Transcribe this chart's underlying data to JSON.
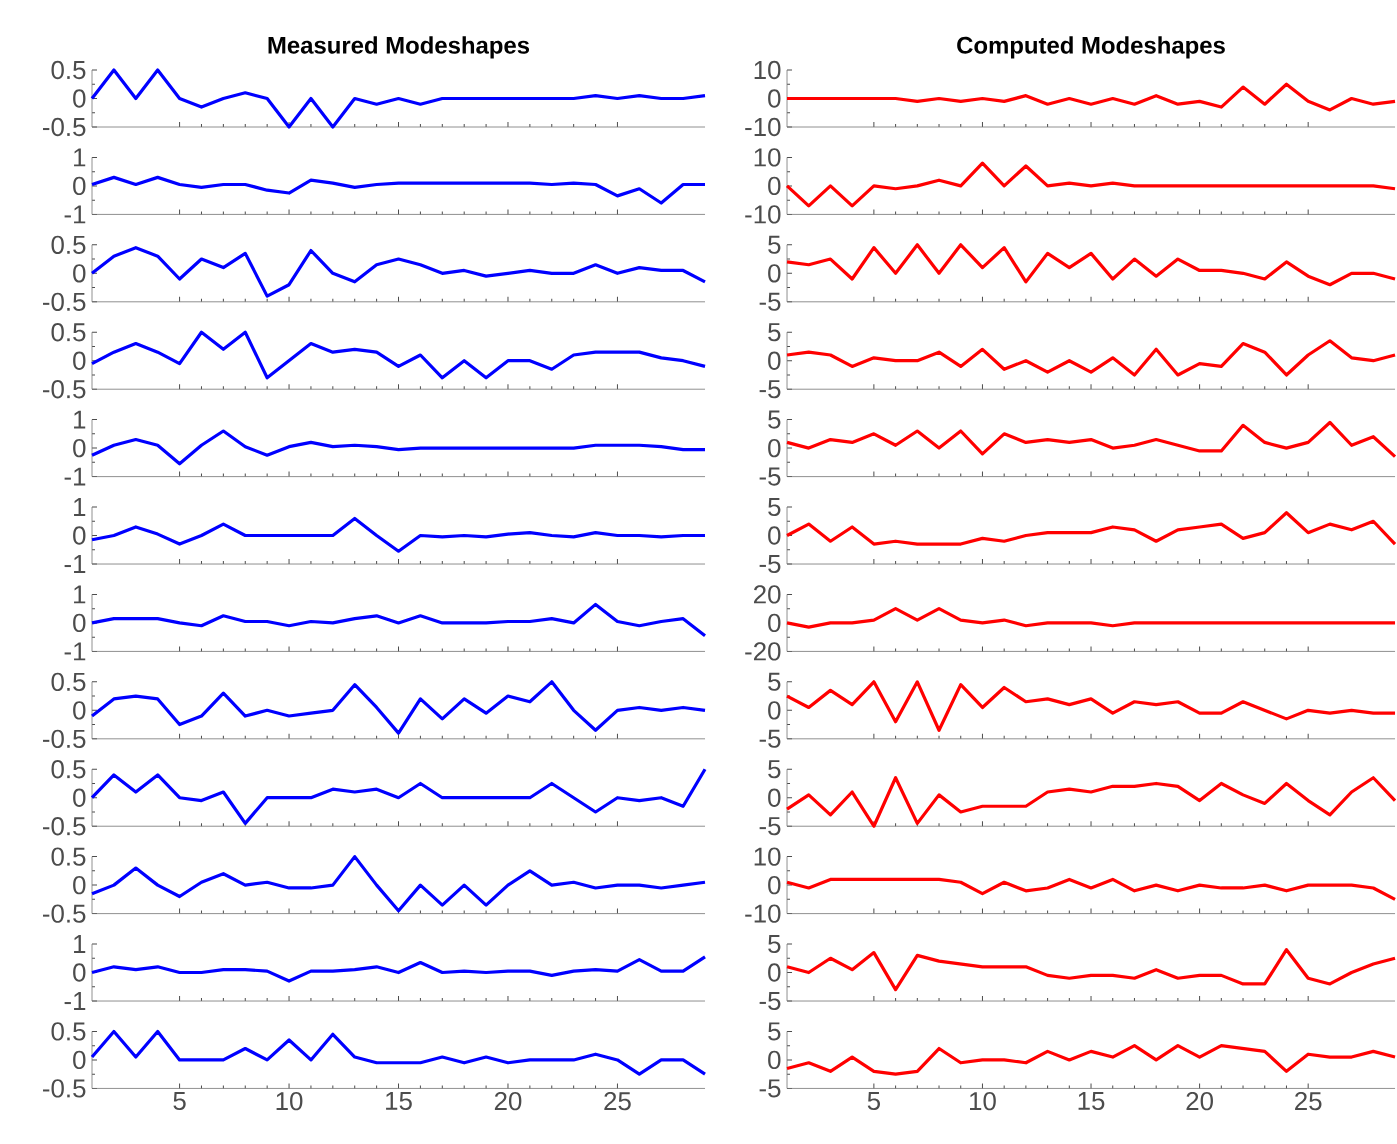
{
  "chart_data": [
    {
      "type": "line",
      "title": "Measured Modeshapes",
      "x": [
        1,
        2,
        3,
        4,
        5,
        6,
        7,
        8,
        9,
        10,
        11,
        12,
        13,
        14,
        15,
        16,
        17,
        18,
        19,
        20,
        21,
        22,
        23,
        24,
        25,
        26,
        27,
        28,
        29
      ],
      "values": [
        0,
        0.5,
        0,
        0.5,
        0,
        -0.15,
        0,
        0.1,
        0,
        -0.5,
        0,
        -0.5,
        0,
        -0.1,
        0,
        -0.1,
        0,
        0,
        0,
        0,
        0,
        0,
        0,
        0.05,
        0,
        0.05,
        0,
        0,
        0.05
      ],
      "color": "#0000ff",
      "xlim": [
        1,
        29
      ],
      "xticks": [
        5,
        10,
        15,
        20,
        25
      ],
      "ylim": [
        -0.5,
        0.5
      ],
      "yticks": [
        -0.5,
        0,
        0.5
      ],
      "tick_labels": "y"
    },
    {
      "type": "line",
      "title": "Computed Modeshapes",
      "x": [
        1,
        2,
        3,
        4,
        5,
        6,
        7,
        8,
        9,
        10,
        11,
        12,
        13,
        14,
        15,
        16,
        17,
        18,
        19,
        20,
        21,
        22,
        23,
        24,
        25,
        26,
        27,
        28,
        29
      ],
      "values": [
        0,
        0,
        0,
        0,
        0,
        0,
        -1,
        0,
        -1,
        0,
        -1,
        1,
        -2,
        0,
        -2,
        0,
        -2,
        1,
        -2,
        -1,
        -3,
        4,
        -2,
        5,
        -1,
        -4,
        0,
        -2,
        -1
      ],
      "color": "#ff0000",
      "xlim": [
        1,
        29
      ],
      "xticks": [
        5,
        10,
        15,
        20,
        25
      ],
      "ylim": [
        -10,
        10
      ],
      "yticks": [
        -10,
        0,
        10
      ],
      "tick_labels": "y"
    },
    {
      "type": "line",
      "x": [
        1,
        2,
        3,
        4,
        5,
        6,
        7,
        8,
        9,
        10,
        11,
        12,
        13,
        14,
        15,
        16,
        17,
        18,
        19,
        20,
        21,
        22,
        23,
        24,
        25,
        26,
        27,
        28,
        29
      ],
      "values": [
        0.05,
        0.3,
        0.05,
        0.3,
        0.05,
        -0.05,
        0.05,
        0.05,
        -0.15,
        -0.25,
        0.2,
        0.1,
        -0.05,
        0.05,
        0.1,
        0.1,
        0.1,
        0.1,
        0.1,
        0.1,
        0.1,
        0.05,
        0.1,
        0.05,
        -0.35,
        -0.1,
        -0.6,
        0.05,
        0.05
      ],
      "color": "#0000ff",
      "xlim": [
        1,
        29
      ],
      "xticks": [
        5,
        10,
        15,
        20,
        25
      ],
      "ylim": [
        -1,
        1
      ],
      "yticks": [
        -1,
        0,
        1
      ],
      "tick_labels": "y"
    },
    {
      "type": "line",
      "x": [
        1,
        2,
        3,
        4,
        5,
        6,
        7,
        8,
        9,
        10,
        11,
        12,
        13,
        14,
        15,
        16,
        17,
        18,
        19,
        20,
        21,
        22,
        23,
        24,
        25,
        26,
        27,
        28,
        29
      ],
      "values": [
        0,
        -7,
        0,
        -7,
        0,
        -1,
        0,
        2,
        0,
        8,
        0,
        7,
        0,
        1,
        0,
        1,
        0,
        0,
        0,
        0,
        0,
        0,
        0,
        0,
        0,
        0,
        0,
        0,
        -1
      ],
      "color": "#ff0000",
      "xlim": [
        1,
        29
      ],
      "xticks": [
        5,
        10,
        15,
        20,
        25
      ],
      "ylim": [
        -10,
        10
      ],
      "yticks": [
        -10,
        0,
        10
      ],
      "tick_labels": "y"
    },
    {
      "type": "line",
      "x": [
        1,
        2,
        3,
        4,
        5,
        6,
        7,
        8,
        9,
        10,
        11,
        12,
        13,
        14,
        15,
        16,
        17,
        18,
        19,
        20,
        21,
        22,
        23,
        24,
        25,
        26,
        27,
        28,
        29
      ],
      "values": [
        0,
        0.3,
        0.45,
        0.3,
        -0.1,
        0.25,
        0.1,
        0.35,
        -0.4,
        -0.2,
        0.4,
        0,
        -0.15,
        0.15,
        0.25,
        0.15,
        0,
        0.05,
        -0.05,
        0,
        0.05,
        0,
        0,
        0.15,
        0,
        0.1,
        0.05,
        0.05,
        -0.15
      ],
      "color": "#0000ff",
      "xlim": [
        1,
        29
      ],
      "xticks": [
        5,
        10,
        15,
        20,
        25
      ],
      "ylim": [
        -0.5,
        0.5
      ],
      "yticks": [
        -0.5,
        0,
        0.5
      ],
      "tick_labels": "y"
    },
    {
      "type": "line",
      "x": [
        1,
        2,
        3,
        4,
        5,
        6,
        7,
        8,
        9,
        10,
        11,
        12,
        13,
        14,
        15,
        16,
        17,
        18,
        19,
        20,
        21,
        22,
        23,
        24,
        25,
        26,
        27,
        28,
        29
      ],
      "values": [
        2,
        1.5,
        2.5,
        -1,
        4.5,
        0,
        5,
        0,
        5,
        1,
        4.5,
        -1.5,
        3.5,
        1,
        3.5,
        -1,
        2.5,
        -0.5,
        2.5,
        0.5,
        0.5,
        0,
        -1,
        2,
        -0.5,
        -2,
        0,
        0,
        -1
      ],
      "color": "#ff0000",
      "xlim": [
        1,
        29
      ],
      "xticks": [
        5,
        10,
        15,
        20,
        25
      ],
      "ylim": [
        -5,
        5
      ],
      "yticks": [
        -5,
        0,
        5
      ],
      "tick_labels": "y"
    },
    {
      "type": "line",
      "x": [
        1,
        2,
        3,
        4,
        5,
        6,
        7,
        8,
        9,
        10,
        11,
        12,
        13,
        14,
        15,
        16,
        17,
        18,
        19,
        20,
        21,
        22,
        23,
        24,
        25,
        26,
        27,
        28,
        29
      ],
      "values": [
        -0.05,
        0.15,
        0.3,
        0.15,
        -0.05,
        0.5,
        0.2,
        0.5,
        -0.3,
        0,
        0.3,
        0.15,
        0.2,
        0.15,
        -0.1,
        0.1,
        -0.3,
        0,
        -0.3,
        0,
        0,
        -0.15,
        0.1,
        0.15,
        0.15,
        0.15,
        0.05,
        0,
        -0.1
      ],
      "color": "#0000ff",
      "xlim": [
        1,
        29
      ],
      "xticks": [
        5,
        10,
        15,
        20,
        25
      ],
      "ylim": [
        -0.5,
        0.5
      ],
      "yticks": [
        -0.5,
        0,
        0.5
      ],
      "tick_labels": "y"
    },
    {
      "type": "line",
      "x": [
        1,
        2,
        3,
        4,
        5,
        6,
        7,
        8,
        9,
        10,
        11,
        12,
        13,
        14,
        15,
        16,
        17,
        18,
        19,
        20,
        21,
        22,
        23,
        24,
        25,
        26,
        27,
        28,
        29
      ],
      "values": [
        1,
        1.5,
        1,
        -1,
        0.5,
        0,
        0,
        1.5,
        -1,
        2,
        -1.5,
        0,
        -2,
        0,
        -2,
        0.5,
        -2.5,
        2,
        -2.5,
        -0.5,
        -1,
        3,
        1.5,
        -2.5,
        1,
        3.5,
        0.5,
        0,
        1
      ],
      "color": "#ff0000",
      "xlim": [
        1,
        29
      ],
      "xticks": [
        5,
        10,
        15,
        20,
        25
      ],
      "ylim": [
        -5,
        5
      ],
      "yticks": [
        -5,
        0,
        5
      ],
      "tick_labels": "y"
    },
    {
      "type": "line",
      "x": [
        1,
        2,
        3,
        4,
        5,
        6,
        7,
        8,
        9,
        10,
        11,
        12,
        13,
        14,
        15,
        16,
        17,
        18,
        19,
        20,
        21,
        22,
        23,
        24,
        25,
        26,
        27,
        28,
        29
      ],
      "values": [
        -0.25,
        0.1,
        0.3,
        0.1,
        -0.55,
        0.1,
        0.6,
        0.05,
        -0.25,
        0.05,
        0.2,
        0.05,
        0.1,
        0.05,
        -0.05,
        0,
        0,
        0,
        0,
        0,
        0,
        0,
        0,
        0.1,
        0.1,
        0.1,
        0.05,
        -0.05,
        -0.05
      ],
      "color": "#0000ff",
      "xlim": [
        1,
        29
      ],
      "xticks": [
        5,
        10,
        15,
        20,
        25
      ],
      "ylim": [
        -1,
        1
      ],
      "yticks": [
        -1,
        0,
        1
      ],
      "tick_labels": "y"
    },
    {
      "type": "line",
      "x": [
        1,
        2,
        3,
        4,
        5,
        6,
        7,
        8,
        9,
        10,
        11,
        12,
        13,
        14,
        15,
        16,
        17,
        18,
        19,
        20,
        21,
        22,
        23,
        24,
        25,
        26,
        27,
        28,
        29
      ],
      "values": [
        1,
        0,
        1.5,
        1,
        2.5,
        0.5,
        3,
        0,
        3,
        -1,
        2.5,
        1,
        1.5,
        1,
        1.5,
        0,
        0.5,
        1.5,
        0.5,
        -0.5,
        -0.5,
        4,
        1,
        0,
        1,
        4.5,
        0.5,
        2,
        -1.5
      ],
      "color": "#ff0000",
      "xlim": [
        1,
        29
      ],
      "xticks": [
        5,
        10,
        15,
        20,
        25
      ],
      "ylim": [
        -5,
        5
      ],
      "yticks": [
        -5,
        0,
        5
      ],
      "tick_labels": "y"
    },
    {
      "type": "line",
      "x": [
        1,
        2,
        3,
        4,
        5,
        6,
        7,
        8,
        9,
        10,
        11,
        12,
        13,
        14,
        15,
        16,
        17,
        18,
        19,
        20,
        21,
        22,
        23,
        24,
        25,
        26,
        27,
        28,
        29
      ],
      "values": [
        -0.15,
        0,
        0.3,
        0.05,
        -0.3,
        0,
        0.4,
        0,
        0,
        0,
        0,
        0,
        0.6,
        0,
        -0.55,
        0,
        -0.05,
        0,
        -0.05,
        0.05,
        0.1,
        0,
        -0.05,
        0.1,
        0,
        0,
        -0.05,
        0,
        0
      ],
      "color": "#0000ff",
      "xlim": [
        1,
        29
      ],
      "xticks": [
        5,
        10,
        15,
        20,
        25
      ],
      "ylim": [
        -1,
        1
      ],
      "yticks": [
        -1,
        0,
        1
      ],
      "tick_labels": "y"
    },
    {
      "type": "line",
      "x": [
        1,
        2,
        3,
        4,
        5,
        6,
        7,
        8,
        9,
        10,
        11,
        12,
        13,
        14,
        15,
        16,
        17,
        18,
        19,
        20,
        21,
        22,
        23,
        24,
        25,
        26,
        27,
        28,
        29
      ],
      "values": [
        0,
        2,
        -1,
        1.5,
        -1.5,
        -1,
        -1.5,
        -1.5,
        -1.5,
        -0.5,
        -1,
        0,
        0.5,
        0.5,
        0.5,
        1.5,
        1,
        -1,
        1,
        1.5,
        2,
        -0.5,
        0.5,
        4,
        0.5,
        2,
        1,
        2.5,
        -1.5
      ],
      "color": "#ff0000",
      "xlim": [
        1,
        29
      ],
      "xticks": [
        5,
        10,
        15,
        20,
        25
      ],
      "ylim": [
        -5,
        5
      ],
      "yticks": [
        -5,
        0,
        5
      ],
      "tick_labels": "y"
    },
    {
      "type": "line",
      "x": [
        1,
        2,
        3,
        4,
        5,
        6,
        7,
        8,
        9,
        10,
        11,
        12,
        13,
        14,
        15,
        16,
        17,
        18,
        19,
        20,
        21,
        22,
        23,
        24,
        25,
        26,
        27,
        28,
        29
      ],
      "values": [
        0,
        0.15,
        0.15,
        0.15,
        0,
        -0.1,
        0.25,
        0.05,
        0.05,
        -0.1,
        0.05,
        0,
        0.15,
        0.25,
        0,
        0.25,
        0,
        0,
        0,
        0.05,
        0.05,
        0.15,
        0,
        0.65,
        0.05,
        -0.1,
        0.05,
        0.15,
        -0.45
      ],
      "color": "#0000ff",
      "xlim": [
        1,
        29
      ],
      "xticks": [
        5,
        10,
        15,
        20,
        25
      ],
      "ylim": [
        -1,
        1
      ],
      "yticks": [
        -1,
        0,
        1
      ],
      "tick_labels": "y"
    },
    {
      "type": "line",
      "x": [
        1,
        2,
        3,
        4,
        5,
        6,
        7,
        8,
        9,
        10,
        11,
        12,
        13,
        14,
        15,
        16,
        17,
        18,
        19,
        20,
        21,
        22,
        23,
        24,
        25,
        26,
        27,
        28,
        29
      ],
      "values": [
        0,
        -3,
        0,
        0,
        2,
        10,
        2,
        10,
        2,
        0,
        2,
        -2,
        0,
        0,
        0,
        -2,
        0,
        0,
        0,
        0,
        0,
        0,
        0,
        0,
        0,
        0,
        0,
        0,
        0
      ],
      "color": "#ff0000",
      "xlim": [
        1,
        29
      ],
      "xticks": [
        5,
        10,
        15,
        20,
        25
      ],
      "ylim": [
        -20,
        20
      ],
      "yticks": [
        -20,
        0,
        20
      ],
      "tick_labels": "y"
    },
    {
      "type": "line",
      "x": [
        1,
        2,
        3,
        4,
        5,
        6,
        7,
        8,
        9,
        10,
        11,
        12,
        13,
        14,
        15,
        16,
        17,
        18,
        19,
        20,
        21,
        22,
        23,
        24,
        25,
        26,
        27,
        28,
        29
      ],
      "values": [
        -0.1,
        0.2,
        0.25,
        0.2,
        -0.25,
        -0.1,
        0.3,
        -0.1,
        0,
        -0.1,
        -0.05,
        0,
        0.45,
        0.05,
        -0.4,
        0.2,
        -0.15,
        0.2,
        -0.05,
        0.25,
        0.15,
        0.5,
        0,
        -0.35,
        0,
        0.05,
        0,
        0.05,
        0
      ],
      "color": "#0000ff",
      "xlim": [
        1,
        29
      ],
      "xticks": [
        5,
        10,
        15,
        20,
        25
      ],
      "ylim": [
        -0.5,
        0.5
      ],
      "yticks": [
        -0.5,
        0,
        0.5
      ],
      "tick_labels": "y"
    },
    {
      "type": "line",
      "x": [
        1,
        2,
        3,
        4,
        5,
        6,
        7,
        8,
        9,
        10,
        11,
        12,
        13,
        14,
        15,
        16,
        17,
        18,
        19,
        20,
        21,
        22,
        23,
        24,
        25,
        26,
        27,
        28,
        29
      ],
      "values": [
        2.5,
        0.5,
        3.5,
        1,
        5,
        -2,
        5,
        -3.5,
        4.5,
        0.5,
        4,
        1.5,
        2,
        1,
        2,
        -0.5,
        1.5,
        1,
        1.5,
        -0.5,
        -0.5,
        1.5,
        0,
        -1.5,
        0,
        -0.5,
        0,
        -0.5,
        -0.5
      ],
      "color": "#ff0000",
      "xlim": [
        1,
        29
      ],
      "xticks": [
        5,
        10,
        15,
        20,
        25
      ],
      "ylim": [
        -5,
        5
      ],
      "yticks": [
        -5,
        0,
        5
      ],
      "tick_labels": "y"
    },
    {
      "type": "line",
      "x": [
        1,
        2,
        3,
        4,
        5,
        6,
        7,
        8,
        9,
        10,
        11,
        12,
        13,
        14,
        15,
        16,
        17,
        18,
        19,
        20,
        21,
        22,
        23,
        24,
        25,
        26,
        27,
        28,
        29
      ],
      "values": [
        0,
        0.4,
        0.1,
        0.4,
        0,
        -0.05,
        0.1,
        -0.45,
        0,
        0,
        0,
        0.15,
        0.1,
        0.15,
        0,
        0.25,
        0,
        0,
        0,
        0,
        0,
        0.25,
        0,
        -0.25,
        0,
        -0.05,
        0,
        -0.15,
        0.5
      ],
      "color": "#0000ff",
      "xlim": [
        1,
        29
      ],
      "xticks": [
        5,
        10,
        15,
        20,
        25
      ],
      "ylim": [
        -0.5,
        0.5
      ],
      "yticks": [
        -0.5,
        0,
        0.5
      ],
      "tick_labels": "y"
    },
    {
      "type": "line",
      "x": [
        1,
        2,
        3,
        4,
        5,
        6,
        7,
        8,
        9,
        10,
        11,
        12,
        13,
        14,
        15,
        16,
        17,
        18,
        19,
        20,
        21,
        22,
        23,
        24,
        25,
        26,
        27,
        28,
        29
      ],
      "values": [
        -2,
        0.5,
        -3,
        1,
        -5,
        3.5,
        -4.5,
        0.5,
        -2.5,
        -1.5,
        -1.5,
        -1.5,
        1,
        1.5,
        1,
        2,
        2,
        2.5,
        2,
        -0.5,
        2.5,
        0.5,
        -1,
        2.5,
        -0.5,
        -3,
        1,
        3.5,
        -0.5
      ],
      "color": "#ff0000",
      "xlim": [
        1,
        29
      ],
      "xticks": [
        5,
        10,
        15,
        20,
        25
      ],
      "ylim": [
        -5,
        5
      ],
      "yticks": [
        -5,
        0,
        5
      ],
      "tick_labels": "y"
    },
    {
      "type": "line",
      "x": [
        1,
        2,
        3,
        4,
        5,
        6,
        7,
        8,
        9,
        10,
        11,
        12,
        13,
        14,
        15,
        16,
        17,
        18,
        19,
        20,
        21,
        22,
        23,
        24,
        25,
        26,
        27,
        28,
        29
      ],
      "values": [
        -0.15,
        0,
        0.3,
        0,
        -0.2,
        0.05,
        0.2,
        0,
        0.05,
        -0.05,
        -0.05,
        0,
        0.5,
        0,
        -0.45,
        0,
        -0.35,
        0,
        -0.35,
        0,
        0.25,
        0,
        0.05,
        -0.05,
        0,
        0,
        -0.05,
        0,
        0.05
      ],
      "color": "#0000ff",
      "xlim": [
        1,
        29
      ],
      "xticks": [
        5,
        10,
        15,
        20,
        25
      ],
      "ylim": [
        -0.5,
        0.5
      ],
      "yticks": [
        -0.5,
        0,
        0.5
      ],
      "tick_labels": "y"
    },
    {
      "type": "line",
      "x": [
        1,
        2,
        3,
        4,
        5,
        6,
        7,
        8,
        9,
        10,
        11,
        12,
        13,
        14,
        15,
        16,
        17,
        18,
        19,
        20,
        21,
        22,
        23,
        24,
        25,
        26,
        27,
        28,
        29
      ],
      "values": [
        1,
        -1,
        2,
        2,
        2,
        2,
        2,
        2,
        1,
        -3,
        1,
        -2,
        -1,
        2,
        -1,
        2,
        -2,
        0,
        -2,
        0,
        -1,
        -1,
        0,
        -2,
        0,
        0,
        0,
        -1,
        -5
      ],
      "color": "#ff0000",
      "xlim": [
        1,
        29
      ],
      "xticks": [
        5,
        10,
        15,
        20,
        25
      ],
      "ylim": [
        -10,
        10
      ],
      "yticks": [
        -10,
        0,
        10
      ],
      "tick_labels": "y"
    },
    {
      "type": "line",
      "x": [
        1,
        2,
        3,
        4,
        5,
        6,
        7,
        8,
        9,
        10,
        11,
        12,
        13,
        14,
        15,
        16,
        17,
        18,
        19,
        20,
        21,
        22,
        23,
        24,
        25,
        26,
        27,
        28,
        29
      ],
      "values": [
        0,
        0.2,
        0.1,
        0.2,
        0,
        0,
        0.1,
        0.1,
        0.05,
        -0.3,
        0.05,
        0.05,
        0.1,
        0.2,
        0,
        0.35,
        0,
        0.05,
        0,
        0.05,
        0.05,
        -0.1,
        0.05,
        0.1,
        0.05,
        0.45,
        0.05,
        0.05,
        0.55
      ],
      "color": "#0000ff",
      "xlim": [
        1,
        29
      ],
      "xticks": [
        5,
        10,
        15,
        20,
        25
      ],
      "ylim": [
        -1,
        1
      ],
      "yticks": [
        -1,
        0,
        1
      ],
      "tick_labels": "y"
    },
    {
      "type": "line",
      "x": [
        1,
        2,
        3,
        4,
        5,
        6,
        7,
        8,
        9,
        10,
        11,
        12,
        13,
        14,
        15,
        16,
        17,
        18,
        19,
        20,
        21,
        22,
        23,
        24,
        25,
        26,
        27,
        28,
        29
      ],
      "values": [
        1,
        0,
        2.5,
        0.5,
        3.5,
        -3,
        3,
        2,
        1.5,
        1,
        1,
        1,
        -0.5,
        -1,
        -0.5,
        -0.5,
        -1,
        0.5,
        -1,
        -0.5,
        -0.5,
        -2,
        -2,
        4,
        -1,
        -2,
        0,
        1.5,
        2.5
      ],
      "color": "#ff0000",
      "xlim": [
        1,
        29
      ],
      "xticks": [
        5,
        10,
        15,
        20,
        25
      ],
      "ylim": [
        -5,
        5
      ],
      "yticks": [
        -5,
        0,
        5
      ],
      "tick_labels": "y"
    },
    {
      "type": "line",
      "x": [
        1,
        2,
        3,
        4,
        5,
        6,
        7,
        8,
        9,
        10,
        11,
        12,
        13,
        14,
        15,
        16,
        17,
        18,
        19,
        20,
        21,
        22,
        23,
        24,
        25,
        26,
        27,
        28,
        29
      ],
      "values": [
        0.05,
        0.5,
        0.05,
        0.5,
        0,
        0,
        0,
        0.2,
        0,
        0.35,
        0,
        0.45,
        0.05,
        -0.05,
        -0.05,
        -0.05,
        0.05,
        -0.05,
        0.05,
        -0.05,
        0,
        0,
        0,
        0.1,
        0,
        -0.25,
        0,
        0,
        -0.25
      ],
      "color": "#0000ff",
      "xlim": [
        1,
        29
      ],
      "xticks": [
        5,
        10,
        15,
        20,
        25
      ],
      "ylim": [
        -0.5,
        0.5
      ],
      "yticks": [
        -0.5,
        0,
        0.5
      ]
    },
    {
      "type": "line",
      "x": [
        1,
        2,
        3,
        4,
        5,
        6,
        7,
        8,
        9,
        10,
        11,
        12,
        13,
        14,
        15,
        16,
        17,
        18,
        19,
        20,
        21,
        22,
        23,
        24,
        25,
        26,
        27,
        28,
        29
      ],
      "values": [
        -1.5,
        -0.5,
        -2,
        0.5,
        -2,
        -2.5,
        -2,
        2,
        -0.5,
        0,
        0,
        -0.5,
        1.5,
        0,
        1.5,
        0.5,
        2.5,
        0,
        2.5,
        0.5,
        2.5,
        2,
        1.5,
        -2,
        1,
        0.5,
        0.5,
        1.5,
        0.5
      ],
      "color": "#ff0000",
      "xlim": [
        1,
        29
      ],
      "xticks": [
        5,
        10,
        15,
        20,
        25
      ],
      "ylim": [
        -5,
        5
      ],
      "yticks": [
        -5,
        0,
        5
      ]
    }
  ]
}
